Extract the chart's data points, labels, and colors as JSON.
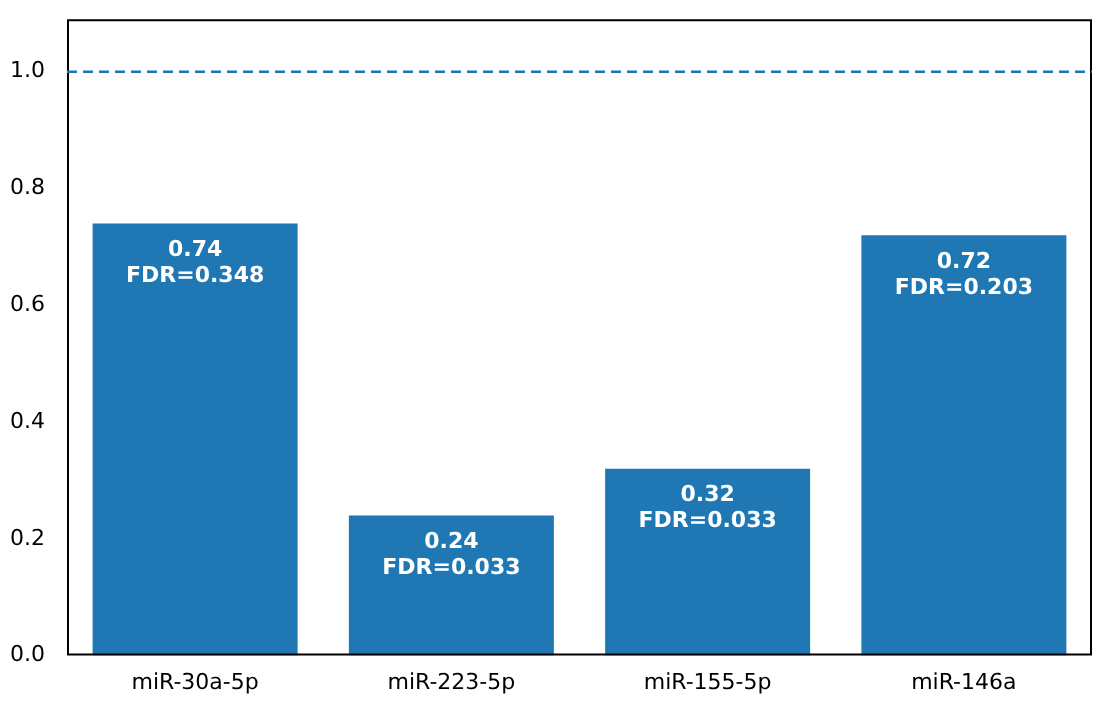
{
  "chart_data": {
    "type": "bar",
    "categories": [
      "miR-30a-5p",
      "miR-223-5p",
      "miR-155-5p",
      "miR-146a"
    ],
    "values": [
      0.74,
      0.24,
      0.32,
      0.72
    ],
    "value_labels": [
      "0.74\nFDR=0.348",
      "0.24\nFDR=0.033",
      "0.32\nFDR=0.033",
      "0.72\nFDR=0.203"
    ],
    "color": "#1f77b4",
    "ylim": [
      0,
      1.09
    ],
    "yticks": [
      {
        "value": 0,
        "label": "0.0"
      },
      0.2,
      0.4,
      0.6,
      0.8,
      {
        "value": 1,
        "label": "1.0"
      }
    ],
    "ref_lines": [
      {
        "axis": "y",
        "value": 1.0,
        "color": "#1f77b4",
        "line_style": "dashed"
      }
    ],
    "grid": false,
    "legend": false
  }
}
